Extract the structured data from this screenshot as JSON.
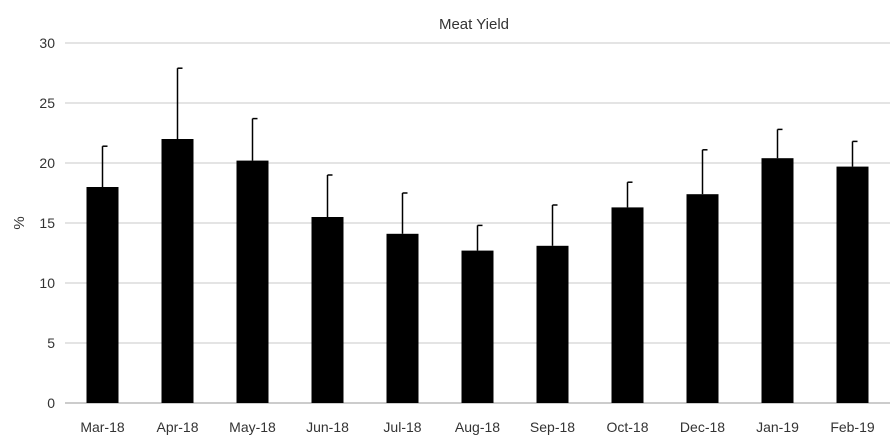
{
  "chart_data": {
    "type": "bar",
    "title": "Meat Yield",
    "xlabel": "",
    "ylabel": "%",
    "categories": [
      "Mar-18",
      "Apr-18",
      "May-18",
      "Jun-18",
      "Jul-18",
      "Aug-18",
      "Sep-18",
      "Oct-18",
      "Dec-18",
      "Jan-19",
      "Feb-19"
    ],
    "values": [
      18.0,
      22.0,
      20.2,
      15.5,
      14.1,
      12.7,
      13.1,
      16.3,
      17.4,
      20.4,
      19.7
    ],
    "error_plus": [
      3.4,
      5.9,
      3.5,
      3.5,
      3.4,
      2.1,
      3.4,
      2.1,
      3.7,
      2.4,
      2.1
    ],
    "ylim": [
      0,
      30
    ],
    "yticks": [
      0,
      5,
      10,
      15,
      20,
      25,
      30
    ],
    "grid": true,
    "legend": "none",
    "colors": {
      "bar": "#000000",
      "grid": "#c8c8c8"
    }
  }
}
